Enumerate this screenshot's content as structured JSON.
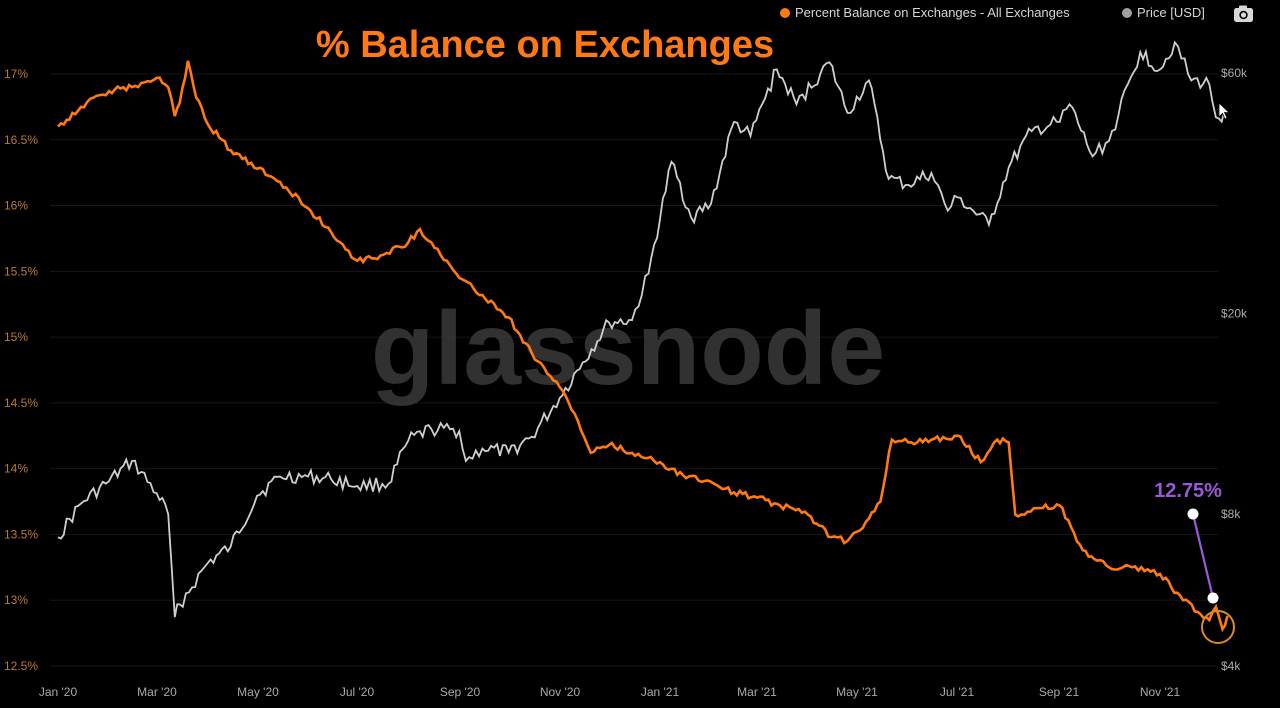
{
  "chart_data": {
    "type": "line",
    "title": "% Balance on Exchanges",
    "watermark": "glassnode",
    "annotation": "12.75%",
    "x_ticks": [
      "Jan '20",
      "Mar '20",
      "May '20",
      "Jul '20",
      "Sep '20",
      "Nov '20",
      "Jan '21",
      "Mar '21",
      "May '21",
      "Jul '21",
      "Sep '21",
      "Nov '21"
    ],
    "left_axis": {
      "ticks": [
        "17%",
        "16.5%",
        "16%",
        "15.5%",
        "15%",
        "14.5%",
        "14%",
        "13.5%",
        "13%",
        "12.5%"
      ],
      "tick_values": [
        17,
        16.5,
        16,
        15.5,
        15,
        14.5,
        14,
        13.5,
        13,
        12.5
      ],
      "range": [
        12.5,
        17.1
      ]
    },
    "right_axis": {
      "ticks": [
        "$60k",
        "$20k",
        "$8k",
        "$4k"
      ],
      "tick_values": [
        60000,
        20000,
        8000,
        4000
      ],
      "scale": "log",
      "range": [
        4000,
        60000
      ]
    },
    "series": [
      {
        "name": "Percent Balance on Exchanges - All Exchanges",
        "axis": "left",
        "color": "#ff7a14",
        "points": [
          [
            "2020-01-01",
            16.6
          ],
          [
            "2020-01-15",
            16.75
          ],
          [
            "2020-02-01",
            16.87
          ],
          [
            "2020-02-15",
            16.9
          ],
          [
            "2020-03-01",
            16.97
          ],
          [
            "2020-03-08",
            16.9
          ],
          [
            "2020-03-12",
            16.68
          ],
          [
            "2020-03-15",
            16.78
          ],
          [
            "2020-03-20",
            17.1
          ],
          [
            "2020-03-25",
            16.82
          ],
          [
            "2020-04-01",
            16.62
          ],
          [
            "2020-04-15",
            16.42
          ],
          [
            "2020-05-01",
            16.28
          ],
          [
            "2020-05-15",
            16.18
          ],
          [
            "2020-06-01",
            15.98
          ],
          [
            "2020-06-15",
            15.8
          ],
          [
            "2020-07-01",
            15.58
          ],
          [
            "2020-07-15",
            15.62
          ],
          [
            "2020-08-01",
            15.72
          ],
          [
            "2020-08-08",
            15.82
          ],
          [
            "2020-08-15",
            15.72
          ],
          [
            "2020-09-01",
            15.45
          ],
          [
            "2020-09-15",
            15.32
          ],
          [
            "2020-10-01",
            15.15
          ],
          [
            "2020-10-15",
            14.88
          ],
          [
            "2020-11-01",
            14.62
          ],
          [
            "2020-11-10",
            14.42
          ],
          [
            "2020-11-20",
            14.12
          ],
          [
            "2020-12-01",
            14.18
          ],
          [
            "2020-12-15",
            14.12
          ],
          [
            "2021-01-01",
            14.05
          ],
          [
            "2021-01-15",
            13.95
          ],
          [
            "2021-02-01",
            13.9
          ],
          [
            "2021-02-15",
            13.82
          ],
          [
            "2021-03-01",
            13.78
          ],
          [
            "2021-03-15",
            13.72
          ],
          [
            "2021-04-01",
            13.65
          ],
          [
            "2021-04-15",
            13.48
          ],
          [
            "2021-04-25",
            13.45
          ],
          [
            "2021-05-08",
            13.62
          ],
          [
            "2021-05-15",
            13.75
          ],
          [
            "2021-05-22",
            14.22
          ],
          [
            "2021-06-01",
            14.2
          ],
          [
            "2021-06-15",
            14.22
          ],
          [
            "2021-07-01",
            14.25
          ],
          [
            "2021-07-15",
            14.05
          ],
          [
            "2021-07-25",
            14.22
          ],
          [
            "2021-08-01",
            14.2
          ],
          [
            "2021-08-05",
            13.65
          ],
          [
            "2021-08-20",
            13.7
          ],
          [
            "2021-09-01",
            13.72
          ],
          [
            "2021-09-15",
            13.38
          ],
          [
            "2021-10-01",
            13.25
          ],
          [
            "2021-10-15",
            13.25
          ],
          [
            "2021-11-01",
            13.2
          ],
          [
            "2021-11-15",
            13.0
          ],
          [
            "2021-12-01",
            12.85
          ],
          [
            "2021-12-05",
            12.95
          ],
          [
            "2021-12-09",
            12.78
          ],
          [
            "2021-12-12",
            12.88
          ]
        ]
      },
      {
        "name": "Price [USD]",
        "axis": "right",
        "color": "#cfcfcf",
        "points": [
          [
            "2020-01-01",
            7200
          ],
          [
            "2020-01-15",
            8400
          ],
          [
            "2020-02-01",
            9300
          ],
          [
            "2020-02-15",
            10200
          ],
          [
            "2020-03-01",
            8800
          ],
          [
            "2020-03-08",
            8000
          ],
          [
            "2020-03-12",
            5000
          ],
          [
            "2020-03-15",
            5300
          ],
          [
            "2020-04-01",
            6400
          ],
          [
            "2020-04-15",
            6900
          ],
          [
            "2020-05-01",
            8700
          ],
          [
            "2020-05-15",
            9500
          ],
          [
            "2020-06-01",
            9500
          ],
          [
            "2020-06-15",
            9400
          ],
          [
            "2020-07-01",
            9100
          ],
          [
            "2020-07-20",
            9200
          ],
          [
            "2020-08-01",
            11200
          ],
          [
            "2020-08-15",
            11800
          ],
          [
            "2020-09-01",
            11700
          ],
          [
            "2020-09-05",
            10200
          ],
          [
            "2020-09-15",
            10800
          ],
          [
            "2020-10-01",
            10600
          ],
          [
            "2020-10-15",
            11400
          ],
          [
            "2020-11-01",
            13600
          ],
          [
            "2020-11-15",
            16000
          ],
          [
            "2020-12-01",
            19200
          ],
          [
            "2020-12-15",
            19400
          ],
          [
            "2020-12-25",
            24000
          ],
          [
            "2021-01-08",
            40000
          ],
          [
            "2021-01-20",
            31000
          ],
          [
            "2021-02-01",
            33000
          ],
          [
            "2021-02-15",
            48000
          ],
          [
            "2021-02-25",
            45000
          ],
          [
            "2021-03-13",
            61000
          ],
          [
            "2021-03-25",
            52000
          ],
          [
            "2021-04-14",
            63000
          ],
          [
            "2021-04-25",
            50000
          ],
          [
            "2021-05-08",
            58000
          ],
          [
            "2021-05-20",
            37000
          ],
          [
            "2021-06-01",
            36000
          ],
          [
            "2021-06-15",
            38000
          ],
          [
            "2021-06-25",
            32000
          ],
          [
            "2021-07-01",
            34000
          ],
          [
            "2021-07-20",
            30000
          ],
          [
            "2021-08-01",
            39000
          ],
          [
            "2021-08-15",
            46000
          ],
          [
            "2021-09-01",
            48000
          ],
          [
            "2021-09-07",
            52000
          ],
          [
            "2021-09-21",
            41000
          ],
          [
            "2021-10-01",
            44000
          ],
          [
            "2021-10-20",
            66000
          ],
          [
            "2021-11-01",
            61000
          ],
          [
            "2021-11-10",
            69000
          ],
          [
            "2021-11-20",
            58000
          ],
          [
            "2021-12-01",
            57000
          ],
          [
            "2021-12-05",
            49000
          ],
          [
            "2021-12-12",
            50000
          ]
        ]
      }
    ],
    "legend": {
      "placement": "top-right",
      "items": [
        {
          "label": "Percent Balance on Exchanges - All Exchanges",
          "color": "#ff7a14"
        },
        {
          "label": "Price [USD]",
          "color": "#a0a0a0"
        }
      ]
    },
    "grid": true
  },
  "colors": {
    "background": "#000000",
    "balance_line": "#ff7a14",
    "price_line": "#cfcfcf",
    "annotation": "#9b59d6"
  },
  "icons": {
    "camera": "camera-icon"
  }
}
